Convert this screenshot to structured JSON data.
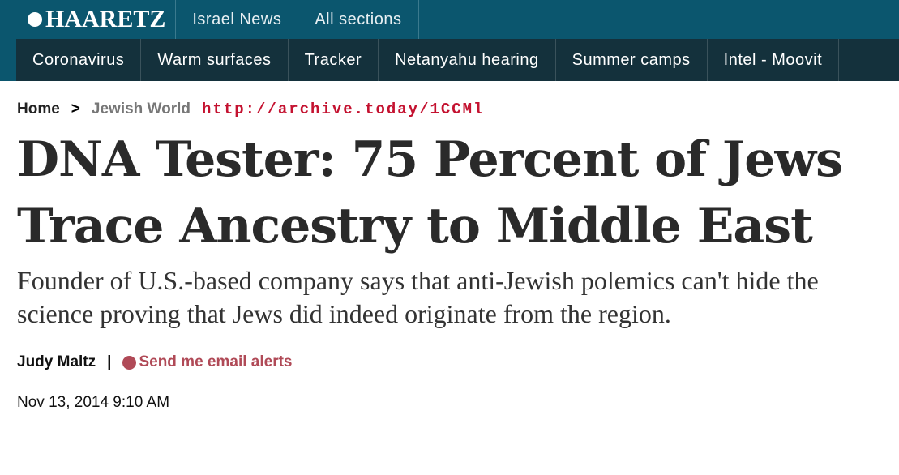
{
  "header": {
    "logo": "HAARETZ",
    "nav": [
      "Israel News",
      "All sections"
    ]
  },
  "subnav": [
    "Coronavirus",
    "Warm surfaces",
    "Tracker",
    "Netanyahu hearing",
    "Summer camps",
    "Intel - Moovit"
  ],
  "breadcrumb": {
    "home": "Home",
    "separator": ">",
    "section": "Jewish World",
    "archive": "http://archive.today/1CCMl"
  },
  "article": {
    "title": "DNA Tester: 75 Percent of Jews Trace Ancestry to Middle East",
    "subtitle": "Founder of U.S.-based company says that anti-Jewish polemics can't hide the science proving that Jews did indeed originate from the region.",
    "author": "Judy Maltz",
    "divider": "|",
    "alerts": "Send me email alerts",
    "date": "Nov 13, 2014 9:10 AM"
  }
}
